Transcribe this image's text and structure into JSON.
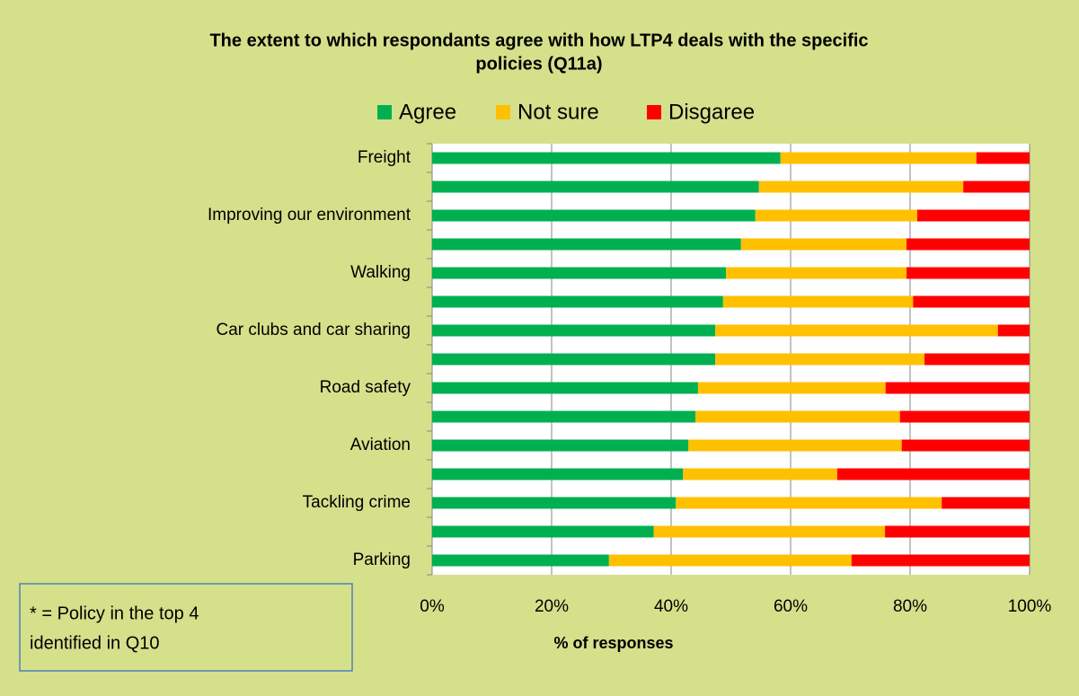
{
  "chart_data": {
    "type": "stacked-bar-horizontal",
    "title": [
      "The extent to which respondants agree with how LTP4 deals with the specific",
      "policies (Q11a)"
    ],
    "xlabel": "% of responses",
    "annotation": [
      "* = Policy in the  top  4",
      "identified in Q10"
    ],
    "categories": [
      "Freight",
      null,
      "Improving our environment",
      null,
      "Walking",
      null,
      "Car clubs and car sharing",
      null,
      "Road safety",
      null,
      "Aviation",
      null,
      "Tackling crime",
      null,
      "Parking"
    ],
    "series": [
      {
        "name": "Agree",
        "color": "#00b050",
        "values": [
          58.3,
          54.7,
          54.1,
          51.7,
          49.2,
          48.7,
          47.4,
          47.4,
          44.5,
          44.1,
          42.9,
          42.0,
          40.8,
          37.1,
          29.6
        ]
      },
      {
        "name": "Not sure",
        "color": "#ffc000",
        "values": [
          32.8,
          34.2,
          27.1,
          27.7,
          30.2,
          31.8,
          47.3,
          35.0,
          31.4,
          34.2,
          35.7,
          25.8,
          44.5,
          38.7,
          40.6
        ]
      },
      {
        "name": "Disgaree",
        "color": "#ff0000",
        "values": [
          8.9,
          11.1,
          18.8,
          20.6,
          20.6,
          19.5,
          5.3,
          17.6,
          24.1,
          21.7,
          21.4,
          32.2,
          14.7,
          24.2,
          29.8
        ]
      }
    ],
    "xlim": [
      0,
      100
    ],
    "xticks": [
      {
        "value": 0,
        "label": "0%"
      },
      {
        "value": 20,
        "label": "20%"
      },
      {
        "value": 40,
        "label": "40%"
      },
      {
        "value": 60,
        "label": "60%"
      },
      {
        "value": 80,
        "label": "80%"
      },
      {
        "value": 100,
        "label": "100%"
      }
    ],
    "grid": true
  }
}
